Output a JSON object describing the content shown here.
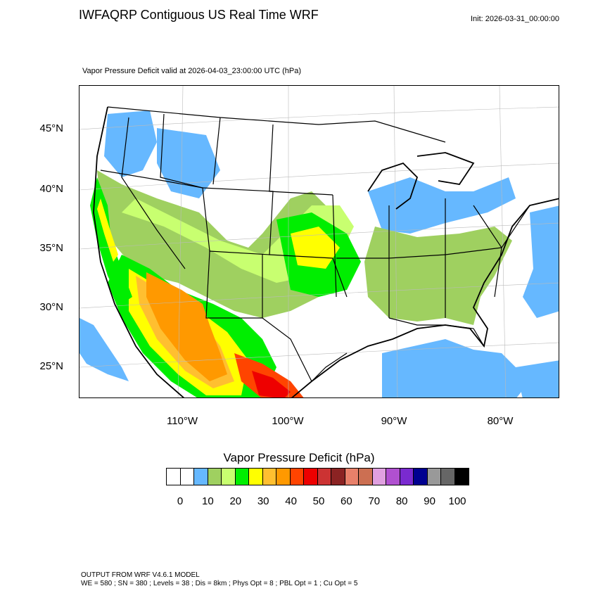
{
  "header": {
    "title": "IWFAQRP Contiguous US Real Time WRF",
    "init": "Init: 2026-03-31_00:00:00",
    "field": "Vapor Pressure Deficit valid at 2026-04-03_23:00:00 UTC   (hPa)"
  },
  "map": {
    "lat_labels": [
      "45°N",
      "40°N",
      "35°N",
      "30°N",
      "25°N"
    ],
    "lon_labels": [
      "110°W",
      "100°W",
      "90°W",
      "80°W"
    ],
    "colors": {
      "ocean_low": "#66b8ff",
      "green_light": "#9fd060",
      "green_yellow": "#c8ff70",
      "green": "#00ee00",
      "yellow": "#ffff00",
      "orange_light": "#ffbf30",
      "orange": "#ff9900",
      "red_orange": "#ff4400",
      "red": "#ee0000"
    }
  },
  "colorbar": {
    "title": "Vapor Pressure Deficit  (hPa)",
    "ticks": [
      "0",
      "10",
      "20",
      "30",
      "40",
      "50",
      "60",
      "70",
      "80",
      "90",
      "100"
    ],
    "colors": [
      "#ffffff",
      "#ffffff",
      "#66b8ff",
      "#9fd060",
      "#c8ff70",
      "#00ee00",
      "#ffff00",
      "#ffbf30",
      "#ff9900",
      "#ff4400",
      "#ee0000",
      "#cc3333",
      "#8b2323",
      "#e8806a",
      "#cc6f52",
      "#e0a0e0",
      "#b050d0",
      "#7a2ad0",
      "#000090",
      "#999999",
      "#666666",
      "#000000"
    ]
  },
  "footer": {
    "line1": "OUTPUT FROM WRF V4.6.1 MODEL",
    "line2": "WE = 580 ; SN = 380 ; Levels = 38 ; Dis = 8km ; Phys Opt = 8 ; PBL Opt = 1 ; Cu Opt = 5"
  }
}
